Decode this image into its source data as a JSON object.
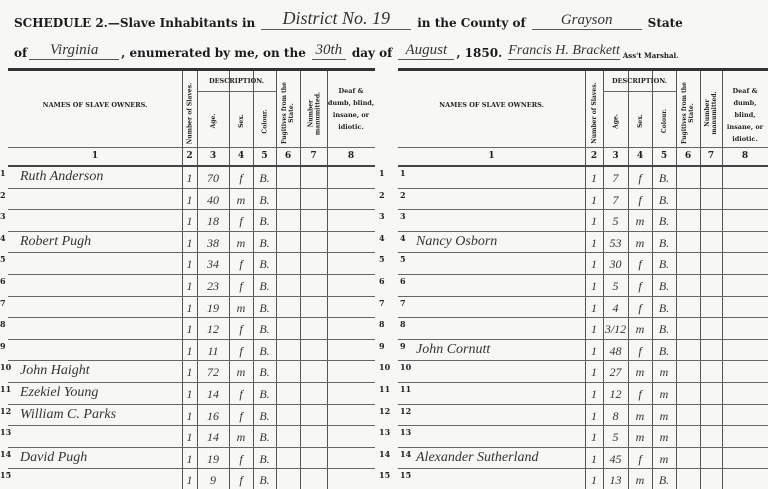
{
  "header": {
    "line1_prefix": "SCHEDULE 2.—Slave Inhabitants in",
    "district": "District No. 19",
    "county_label": "in the County of",
    "county": "Grayson",
    "state_label": "State",
    "of_label": "of",
    "state": "Virginia",
    "enumerated_label": ", enumerated by me, on the",
    "day": "30th",
    "day_of_label": "day of",
    "month": "August",
    "year_label": ", 1850.",
    "marshal": "Francis H. Brackett",
    "marshal_label": "Ass't Marshal."
  },
  "columns": {
    "names": "NAMES OF SLAVE OWNERS.",
    "number": "Number of Slaves.",
    "description": "DESCRIPTION.",
    "age": "Age.",
    "sex": "Sex.",
    "colour": "Colour.",
    "fugitives": "Fugitives from the State.",
    "manumitted": "Number manumitted.",
    "deaf": "Deaf & dumb, blind, insane, or idiotic.",
    "numbers": [
      "1",
      "2",
      "3",
      "4",
      "5",
      "6",
      "7",
      "8"
    ]
  },
  "left_rows": [
    {
      "n": "1",
      "name": "Ruth Anderson",
      "num": "1",
      "age": "70",
      "sex": "f",
      "colour": "B."
    },
    {
      "n": "2",
      "name": "",
      "num": "1",
      "age": "40",
      "sex": "m",
      "colour": "B."
    },
    {
      "n": "3",
      "name": "",
      "num": "1",
      "age": "18",
      "sex": "f",
      "colour": "B."
    },
    {
      "n": "4",
      "name": "Robert Pugh",
      "num": "1",
      "age": "38",
      "sex": "m",
      "colour": "B."
    },
    {
      "n": "5",
      "name": "",
      "num": "1",
      "age": "34",
      "sex": "f",
      "colour": "B."
    },
    {
      "n": "6",
      "name": "",
      "num": "1",
      "age": "23",
      "sex": "f",
      "colour": "B."
    },
    {
      "n": "7",
      "name": "",
      "num": "1",
      "age": "19",
      "sex": "m",
      "colour": "B."
    },
    {
      "n": "8",
      "name": "",
      "num": "1",
      "age": "12",
      "sex": "f",
      "colour": "B."
    },
    {
      "n": "9",
      "name": "",
      "num": "1",
      "age": "11",
      "sex": "f",
      "colour": "B."
    },
    {
      "n": "10",
      "name": "John Haight",
      "num": "1",
      "age": "72",
      "sex": "m",
      "colour": "B."
    },
    {
      "n": "11",
      "name": "Ezekiel Young",
      "num": "1",
      "age": "14",
      "sex": "f",
      "colour": "B."
    },
    {
      "n": "12",
      "name": "William C. Parks",
      "num": "1",
      "age": "16",
      "sex": "f",
      "colour": "B."
    },
    {
      "n": "13",
      "name": "",
      "num": "1",
      "age": "14",
      "sex": "m",
      "colour": "B."
    },
    {
      "n": "14",
      "name": "David Pugh",
      "num": "1",
      "age": "19",
      "sex": "f",
      "colour": "B."
    },
    {
      "n": "15",
      "name": "",
      "num": "1",
      "age": "9",
      "sex": "f",
      "colour": "B."
    }
  ],
  "right_rows": [
    {
      "n": "1",
      "name": "",
      "num": "1",
      "age": "7",
      "sex": "f",
      "colour": "B."
    },
    {
      "n": "2",
      "name": "",
      "num": "1",
      "age": "7",
      "sex": "f",
      "colour": "B."
    },
    {
      "n": "3",
      "name": "",
      "num": "1",
      "age": "5",
      "sex": "m",
      "colour": "B."
    },
    {
      "n": "4",
      "name": "Nancy Osborn",
      "num": "1",
      "age": "53",
      "sex": "m",
      "colour": "B."
    },
    {
      "n": "5",
      "name": "",
      "num": "1",
      "age": "30",
      "sex": "f",
      "colour": "B."
    },
    {
      "n": "6",
      "name": "",
      "num": "1",
      "age": "5",
      "sex": "f",
      "colour": "B."
    },
    {
      "n": "7",
      "name": "",
      "num": "1",
      "age": "4",
      "sex": "f",
      "colour": "B."
    },
    {
      "n": "8",
      "name": "",
      "num": "1",
      "age": "3/12",
      "sex": "m",
      "colour": "B."
    },
    {
      "n": "9",
      "name": "John Cornutt",
      "num": "1",
      "age": "48",
      "sex": "f",
      "colour": "B."
    },
    {
      "n": "10",
      "name": "",
      "num": "1",
      "age": "27",
      "sex": "m",
      "colour": "m"
    },
    {
      "n": "11",
      "name": "",
      "num": "1",
      "age": "12",
      "sex": "f",
      "colour": "m"
    },
    {
      "n": "12",
      "name": "",
      "num": "1",
      "age": "8",
      "sex": "m",
      "colour": "m"
    },
    {
      "n": "13",
      "name": "",
      "num": "1",
      "age": "5",
      "sex": "m",
      "colour": "m"
    },
    {
      "n": "14",
      "name": "Alexander Sutherland",
      "num": "1",
      "age": "45",
      "sex": "f",
      "colour": "m"
    },
    {
      "n": "15",
      "name": "",
      "num": "1",
      "age": "13",
      "sex": "m",
      "colour": "B."
    }
  ]
}
